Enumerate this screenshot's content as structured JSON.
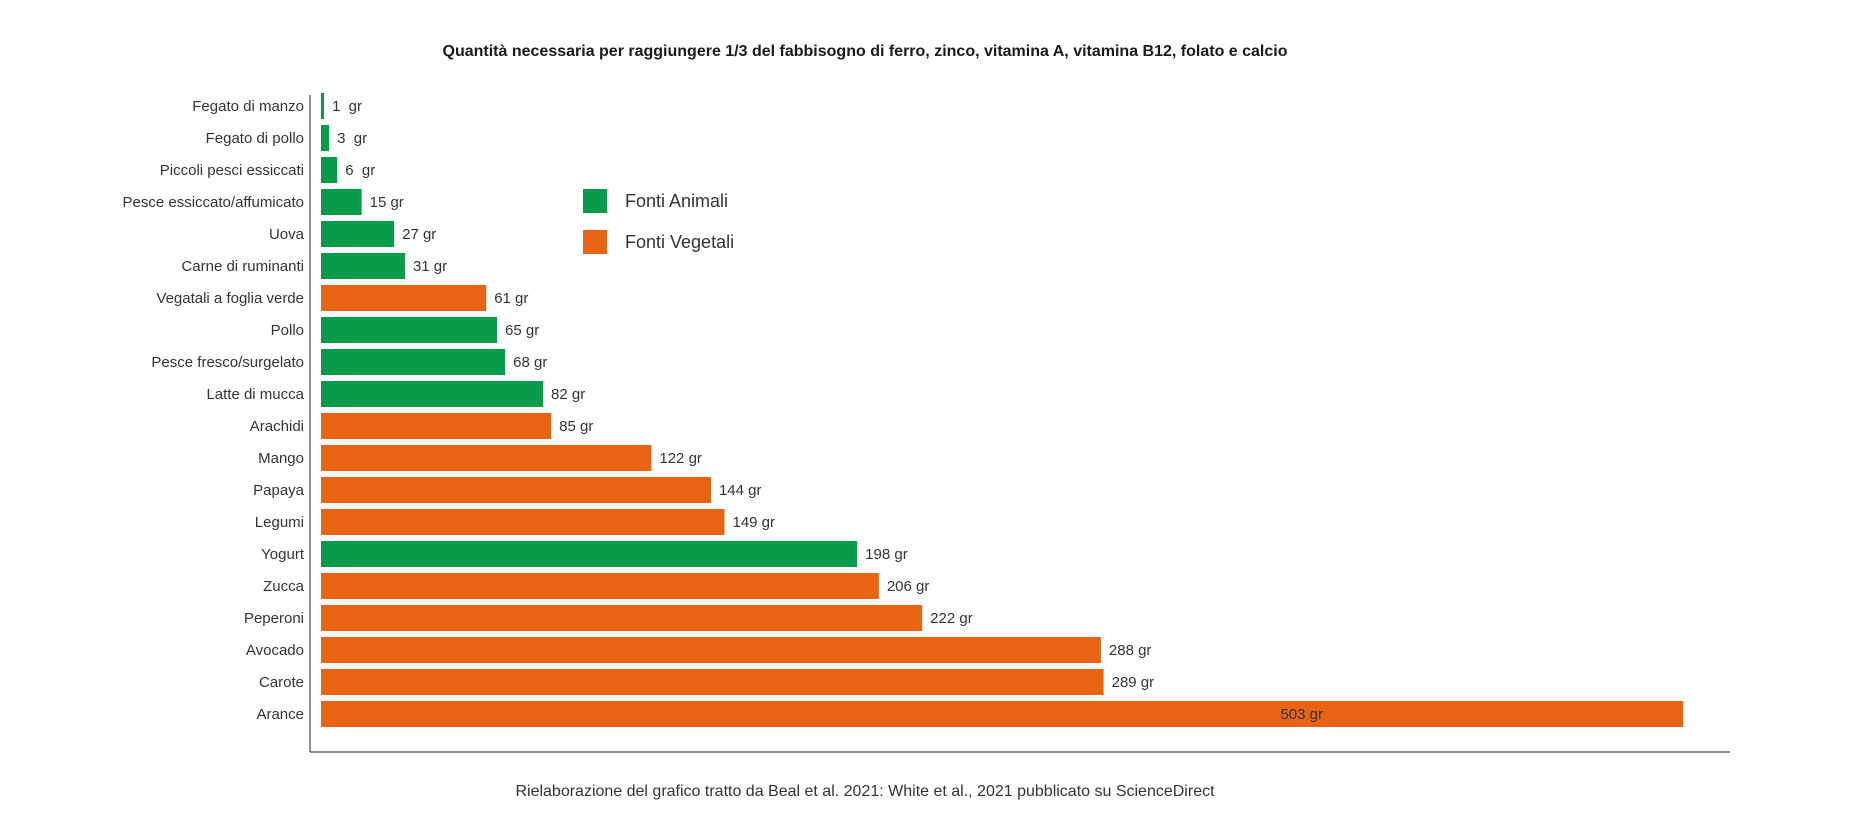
{
  "chart_data": {
    "type": "bar",
    "orientation": "horizontal",
    "title": "Quantità necessaria per raggiungere 1/3 del fabbisogno di ferro, zinco, vitamina A, vitamina B12, folato  e calcio",
    "categories": [
      "Fegato di manzo",
      "Fegato di pollo",
      "Piccoli pesci essiccati",
      "Pesce essiccato/affumicato",
      "Uova",
      "Carne di ruminanti",
      "Vegatali a foglia verde",
      "Pollo",
      "Pesce fresco/surgelato",
      "Latte di mucca",
      "Arachidi",
      "Mango",
      "Papaya",
      "Legumi",
      "Yogurt",
      "Zucca",
      "Peperoni",
      "Avocado",
      "Carote",
      "Arance"
    ],
    "values": [
      1,
      3,
      6,
      15,
      27,
      31,
      61,
      65,
      68,
      82,
      85,
      122,
      144,
      149,
      198,
      206,
      222,
      288,
      289,
      503
    ],
    "value_labels": [
      "1  gr",
      "3  gr",
      "6  gr",
      "15 gr",
      "27 gr",
      "31 gr",
      "61 gr",
      "65 gr",
      "68 gr",
      "82 gr",
      "85 gr",
      "122 gr",
      "144 gr",
      "149 gr",
      "198 gr",
      "206 gr",
      "222 gr",
      "288 gr",
      "289 gr",
      "503 gr"
    ],
    "groups": [
      "animal",
      "animal",
      "animal",
      "animal",
      "animal",
      "animal",
      "vegetal",
      "animal",
      "animal",
      "animal",
      "vegetal",
      "vegetal",
      "vegetal",
      "vegetal",
      "animal",
      "vegetal",
      "vegetal",
      "vegetal",
      "vegetal",
      "vegetal"
    ],
    "legend": [
      {
        "key": "animal",
        "label": "Fonti Animali",
        "color": "#0a9b4a"
      },
      {
        "key": "vegetal",
        "label": "Fonti Vegetali",
        "color": "#e86414"
      }
    ],
    "xlim": [
      0,
      503
    ],
    "grid": false,
    "legend_placement": "upper-middle"
  },
  "source_note": "Rielaborazione del grafico tratto da Beal et al. 2021: White et al., 2021 pubblicato su ScienceDirect"
}
